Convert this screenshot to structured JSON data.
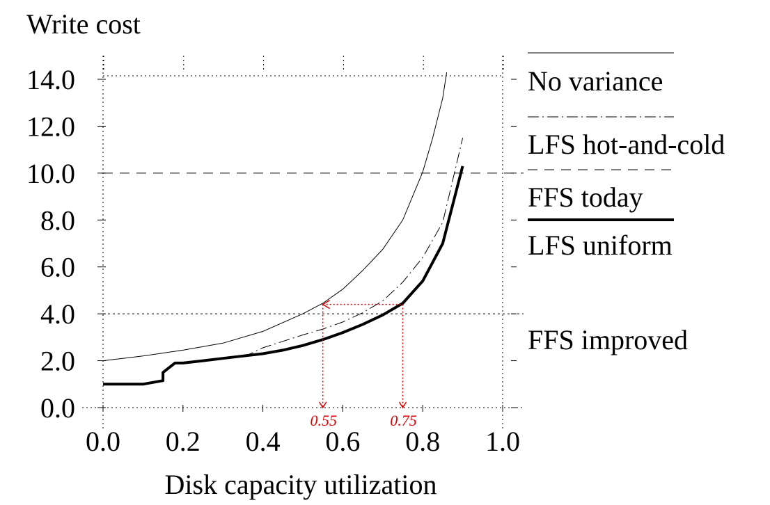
{
  "chart_data": {
    "type": "line",
    "title": "Write cost",
    "xlabel": "Disk capacity utilization",
    "ylabel": "",
    "xlim": [
      0.0,
      1.0
    ],
    "ylim": [
      0.0,
      14.0
    ],
    "x_ticks": [
      "0.0",
      "0.2",
      "0.4",
      "0.6",
      "0.8",
      "1.0"
    ],
    "y_ticks": [
      "0.0",
      "2.0",
      "4.0",
      "6.0",
      "8.0",
      "10.0",
      "12.0",
      "14.0"
    ],
    "grid": "dotted",
    "legend_position": "right",
    "series": [
      {
        "name": "No variance",
        "style": "thin-solid",
        "x": [
          0.0,
          0.1,
          0.2,
          0.3,
          0.4,
          0.5,
          0.55,
          0.6,
          0.65,
          0.7,
          0.75,
          0.8,
          0.825,
          0.85,
          0.86
        ],
        "y": [
          2.0,
          2.2,
          2.45,
          2.75,
          3.25,
          4.0,
          4.45,
          5.05,
          5.85,
          6.75,
          8.0,
          10.05,
          11.5,
          13.2,
          14.3
        ]
      },
      {
        "name": "LFS hot-and-cold",
        "style": "dash-dot",
        "x": [
          0.35,
          0.4,
          0.5,
          0.55,
          0.6,
          0.65,
          0.7,
          0.75,
          0.8,
          0.85,
          0.9
        ],
        "y": [
          2.15,
          2.55,
          3.1,
          3.35,
          3.65,
          4.05,
          4.55,
          5.35,
          6.4,
          7.9,
          11.5
        ]
      },
      {
        "name": "LFS uniform",
        "style": "thick-solid",
        "x": [
          0.0,
          0.1,
          0.15,
          0.15,
          0.18,
          0.2,
          0.25,
          0.3,
          0.35,
          0.4,
          0.45,
          0.5,
          0.55,
          0.6,
          0.65,
          0.7,
          0.75,
          0.8,
          0.85,
          0.9
        ],
        "y": [
          1.0,
          1.0,
          1.15,
          1.5,
          1.9,
          1.9,
          2.0,
          2.1,
          2.2,
          2.3,
          2.45,
          2.65,
          2.9,
          3.2,
          3.55,
          3.95,
          4.45,
          5.4,
          7.0,
          10.3
        ]
      }
    ],
    "reference_lines": [
      {
        "name": "FFS today",
        "y": 10.0,
        "style": "dashed"
      },
      {
        "name": "FFS improved",
        "y": 4.0,
        "style": "dotted"
      }
    ],
    "annotations": [
      {
        "label": "0.55",
        "x": 0.55,
        "y_from": 4.4,
        "color": "#e00000"
      },
      {
        "label": "0.75",
        "x": 0.75,
        "y_from": 4.4,
        "color": "#e00000"
      }
    ],
    "colors": {
      "line": "#000000",
      "annotation": "#e00000"
    }
  }
}
